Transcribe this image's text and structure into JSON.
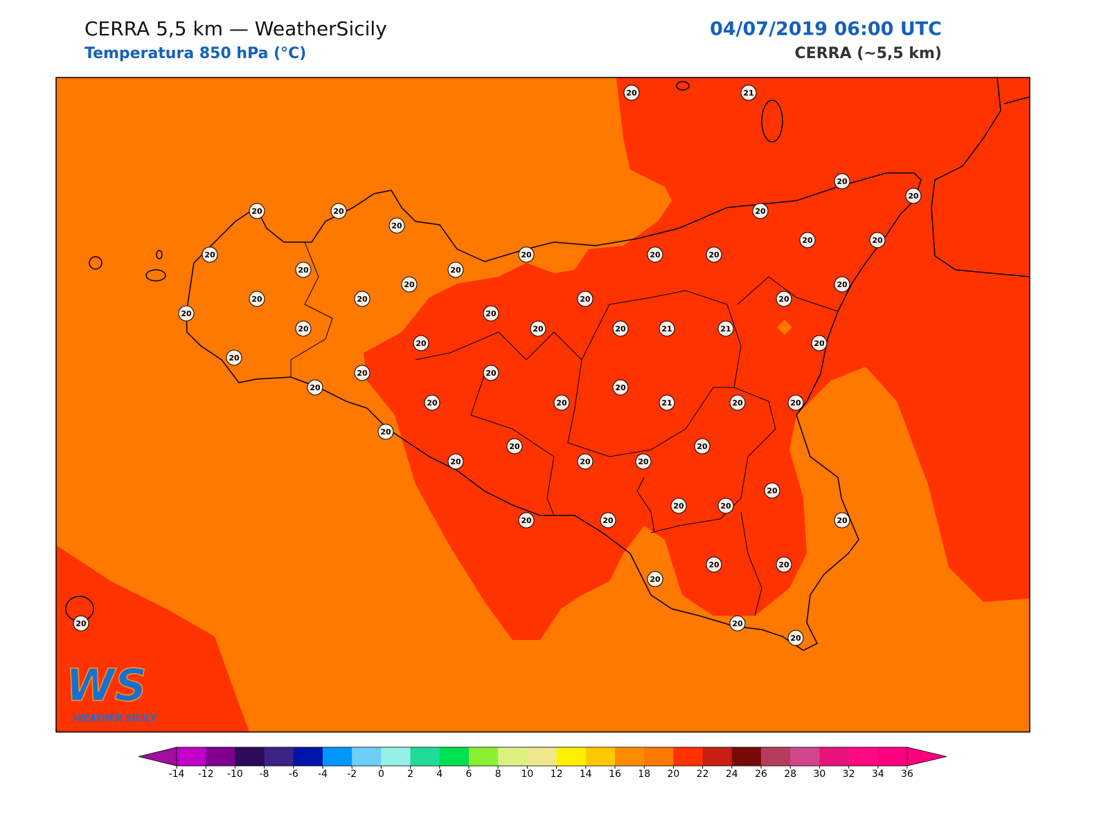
{
  "header": {
    "title": "CERRA 5,5 km — WeatherSicily",
    "subtitle": "Temperatura 850 hPa (°C)",
    "datetime": "04/07/2019 06:00 UTC",
    "model": "CERRA (~5,5 km)"
  },
  "stations": [
    20,
    21,
    20,
    20,
    20,
    20,
    20,
    20,
    20,
    20,
    20,
    20,
    20,
    20,
    20,
    20,
    20,
    20,
    20,
    20,
    20,
    20,
    20,
    20,
    20,
    20,
    20,
    21,
    21,
    20,
    20,
    20,
    20,
    20,
    20,
    20,
    20,
    20,
    21,
    20,
    20,
    20,
    20,
    20,
    20,
    20,
    20,
    20,
    20,
    20,
    20,
    20,
    20,
    20,
    20,
    20,
    20,
    20,
    20
  ],
  "colorbar": {
    "ticks": [
      -14,
      -12,
      -10,
      -8,
      -6,
      -4,
      -2,
      0,
      2,
      4,
      6,
      8,
      10,
      12,
      14,
      16,
      18,
      20,
      22,
      24,
      26,
      28,
      30,
      32,
      34,
      36
    ],
    "colors": [
      "#c000c8",
      "#800090",
      "#2d0a5a",
      "#3c2387",
      "#0014aa",
      "#0096ff",
      "#6ecff5",
      "#96f0e6",
      "#1edc96",
      "#00e050",
      "#8cf032",
      "#dcf082",
      "#f0e68c",
      "#fff000",
      "#ffc800",
      "#ff8c00",
      "#ff7800",
      "#ff3200",
      "#c81e14",
      "#780a0a",
      "#b43c5a",
      "#d2468c",
      "#e6147a",
      "#ff0a82",
      "#ff0080"
    ],
    "under_color": "#a00fa0",
    "over_color": "#ff0080"
  },
  "logo": {
    "mark": "WS",
    "text": "WEATHER SICILY"
  }
}
